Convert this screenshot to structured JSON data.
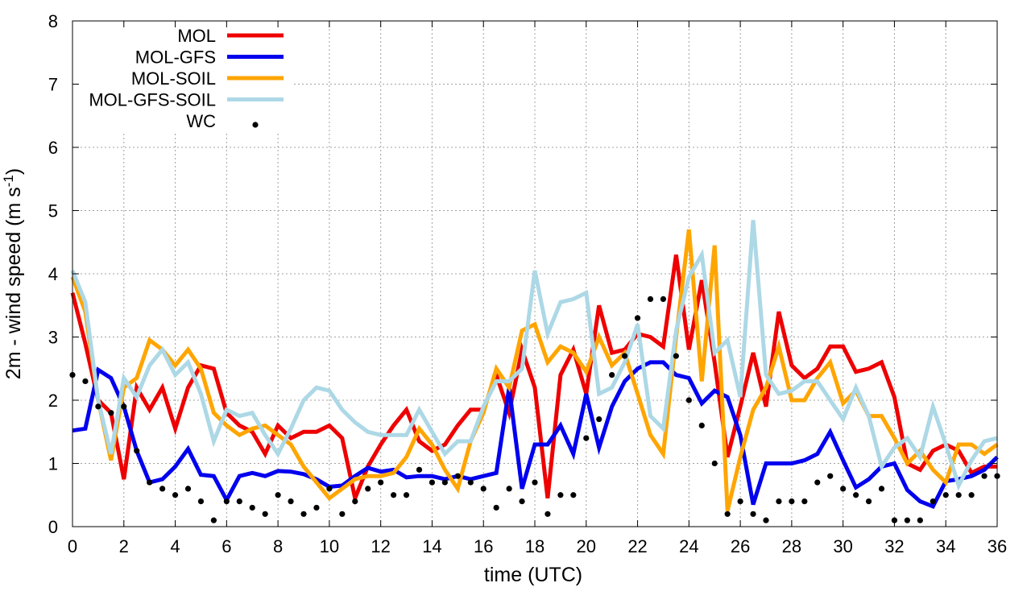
{
  "chart_data": {
    "type": "line",
    "xlabel": "time (UTC)",
    "ylabel": {
      "main": "2m - wind speed  (m s",
      "sup": "-1",
      "tail": ")"
    },
    "xlim": [
      0,
      36
    ],
    "ylim": [
      0,
      8
    ],
    "xticks": [
      0,
      2,
      4,
      6,
      8,
      10,
      12,
      14,
      16,
      18,
      20,
      22,
      24,
      26,
      28,
      30,
      32,
      34,
      36
    ],
    "yticks": [
      0,
      1,
      2,
      3,
      4,
      5,
      6,
      7,
      8
    ],
    "grid": true,
    "legend_position": "top-left",
    "x": [
      0,
      0.5,
      1,
      1.5,
      2,
      2.5,
      3,
      3.5,
      4,
      4.5,
      5,
      5.5,
      6,
      6.5,
      7,
      7.5,
      8,
      8.5,
      9,
      9.5,
      10,
      10.5,
      11,
      11.5,
      12,
      12.5,
      13,
      13.5,
      14,
      14.5,
      15,
      15.5,
      16,
      16.5,
      17,
      17.5,
      18,
      18.5,
      19,
      19.5,
      20,
      20.5,
      21,
      21.5,
      22,
      22.5,
      23,
      23.5,
      24,
      24.5,
      25,
      25.5,
      26,
      26.5,
      27,
      27.5,
      28,
      28.5,
      29,
      29.5,
      30,
      30.5,
      31,
      31.5,
      32,
      32.5,
      33,
      33.5,
      34,
      34.5,
      35,
      35.5,
      36
    ],
    "series": [
      {
        "name": "MOL",
        "color": "#ee0000",
        "width": 5,
        "style": "line",
        "values": [
          3.7,
          2.9,
          2.0,
          1.8,
          0.75,
          2.2,
          1.85,
          2.2,
          1.55,
          2.2,
          2.55,
          2.5,
          1.8,
          1.6,
          1.5,
          1.15,
          1.6,
          1.4,
          1.5,
          1.5,
          1.6,
          1.4,
          0.45,
          0.95,
          1.3,
          1.6,
          1.85,
          1.35,
          1.2,
          1.3,
          1.6,
          1.85,
          1.85,
          2.4,
          1.8,
          2.8,
          2.2,
          0.45,
          2.4,
          2.8,
          2.1,
          3.5,
          2.75,
          2.8,
          3.05,
          3.0,
          2.85,
          4.3,
          2.8,
          3.9,
          2.6,
          1.1,
          1.9,
          2.75,
          1.9,
          3.4,
          2.55,
          2.35,
          2.5,
          2.85,
          2.85,
          2.45,
          2.5,
          2.6,
          2.05,
          1.0,
          0.9,
          1.2,
          1.3,
          1.2,
          0.85,
          0.95,
          0.95
        ]
      },
      {
        "name": "MOL-GFS",
        "color": "#0000ee",
        "width": 5,
        "style": "line",
        "values": [
          1.52,
          1.55,
          2.48,
          2.35,
          1.9,
          1.2,
          0.7,
          0.75,
          0.95,
          1.23,
          0.82,
          0.8,
          0.42,
          0.8,
          0.85,
          0.8,
          0.88,
          0.87,
          0.83,
          0.75,
          0.63,
          0.65,
          0.8,
          0.93,
          0.87,
          0.9,
          0.78,
          0.8,
          0.8,
          0.75,
          0.8,
          0.75,
          0.8,
          0.85,
          2.2,
          0.6,
          1.3,
          1.3,
          1.6,
          1.15,
          2.1,
          1.25,
          1.9,
          2.3,
          2.5,
          2.6,
          2.6,
          2.4,
          2.35,
          1.95,
          2.15,
          2.05,
          1.45,
          0.35,
          1.0,
          1.0,
          1.0,
          1.05,
          1.15,
          1.5,
          1.05,
          0.62,
          0.75,
          0.95,
          1.0,
          0.58,
          0.4,
          0.32,
          0.72,
          0.75,
          0.8,
          0.9,
          1.1
        ]
      },
      {
        "name": "MOL-SOIL",
        "color": "#ffa500",
        "width": 5,
        "style": "line",
        "values": [
          3.95,
          3.4,
          2.0,
          1.05,
          2.2,
          2.35,
          2.95,
          2.8,
          2.55,
          2.8,
          2.5,
          1.8,
          1.6,
          1.45,
          1.55,
          1.6,
          1.45,
          1.3,
          0.95,
          0.7,
          0.45,
          0.6,
          0.75,
          0.8,
          0.8,
          0.85,
          1.1,
          1.55,
          1.3,
          0.9,
          0.6,
          1.35,
          1.8,
          2.5,
          2.2,
          3.1,
          3.2,
          2.6,
          2.85,
          2.75,
          2.45,
          3.0,
          2.55,
          2.75,
          2.1,
          1.45,
          1.15,
          3.0,
          4.7,
          2.3,
          4.45,
          0.25,
          1.1,
          1.85,
          2.2,
          2.85,
          2.0,
          2.0,
          2.35,
          2.6,
          1.95,
          2.15,
          1.75,
          1.75,
          1.4,
          1.0,
          1.2,
          0.9,
          0.7,
          1.3,
          1.3,
          1.15,
          1.3
        ]
      },
      {
        "name": "MOL-GFS-SOIL",
        "color": "#add8e6",
        "width": 5,
        "style": "line",
        "values": [
          4.05,
          3.55,
          2.0,
          1.15,
          2.35,
          2.05,
          2.55,
          2.8,
          2.4,
          2.6,
          2.1,
          1.35,
          1.85,
          1.75,
          1.8,
          1.45,
          1.15,
          1.55,
          2.0,
          2.2,
          2.15,
          1.85,
          1.65,
          1.5,
          1.45,
          1.45,
          1.45,
          1.85,
          1.5,
          1.15,
          1.35,
          1.35,
          1.9,
          2.3,
          2.3,
          2.5,
          4.05,
          3.05,
          3.55,
          3.6,
          3.7,
          2.1,
          2.2,
          2.6,
          3.2,
          1.75,
          1.55,
          3.1,
          3.95,
          4.3,
          2.75,
          2.95,
          2.05,
          4.85,
          2.4,
          2.1,
          2.15,
          2.3,
          2.3,
          2.0,
          1.7,
          2.2,
          1.75,
          0.95,
          1.25,
          1.4,
          1.1,
          1.9,
          1.3,
          0.65,
          1.05,
          1.35,
          1.4
        ]
      },
      {
        "name": "WC",
        "color": "#000000",
        "style": "points",
        "values": [
          2.4,
          2.3,
          1.9,
          1.8,
          1.9,
          1.2,
          0.7,
          0.6,
          0.5,
          0.6,
          0.4,
          0.1,
          0.4,
          0.4,
          0.3,
          0.2,
          0.5,
          0.4,
          0.2,
          0.3,
          0.6,
          0.2,
          0.4,
          0.6,
          0.7,
          0.5,
          0.5,
          0.9,
          0.7,
          0.7,
          0.8,
          0.7,
          0.6,
          0.3,
          0.6,
          0.4,
          0.7,
          0.2,
          0.5,
          0.5,
          1.4,
          1.7,
          2.4,
          2.7,
          3.3,
          3.6,
          3.6,
          2.7,
          2.0,
          1.6,
          1.0,
          0.2,
          0.4,
          0.2,
          0.1,
          0.4,
          0.4,
          0.4,
          0.7,
          0.8,
          0.6,
          0.5,
          0.4,
          0.6,
          0.1,
          0.1,
          0.1,
          0.4,
          0.5,
          0.5,
          0.5,
          0.8,
          0.8
        ]
      }
    ]
  }
}
